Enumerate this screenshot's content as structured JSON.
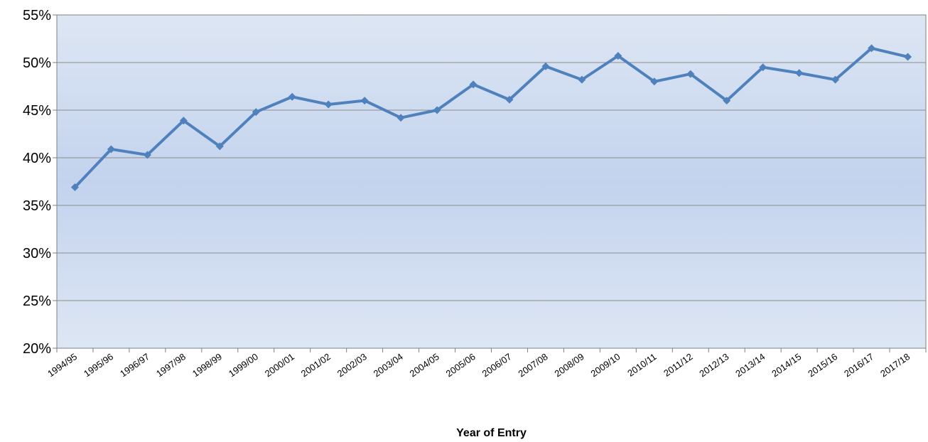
{
  "chart_data": {
    "type": "line",
    "title": "",
    "xlabel": "Year of Entry",
    "ylabel": "",
    "ylim": [
      0.2,
      0.55
    ],
    "yticks": [
      "20%",
      "25%",
      "30%",
      "35%",
      "40%",
      "45%",
      "50%",
      "55%"
    ],
    "grid": true,
    "legend": "none",
    "line_color": "#4f81bd",
    "plot_bg_top": "#dde6f3",
    "plot_bg_bottom": "#c3d3ee",
    "categories": [
      "1994/95",
      "1995/96",
      "1996/97",
      "1997/98",
      "1998/99",
      "1999/00",
      "2000/01",
      "2001/02",
      "2002/03",
      "2003/04",
      "2004/05",
      "2005/06",
      "2006/07",
      "2007/08",
      "2008/09",
      "2009/10",
      "2010/11",
      "2011/12",
      "2012/13",
      "2013/14",
      "2014/15",
      "2015/16",
      "2016/17",
      "2017/18"
    ],
    "series": [
      {
        "values": [
          0.369,
          0.409,
          0.403,
          0.439,
          0.412,
          0.448,
          0.464,
          0.456,
          0.46,
          0.442,
          0.45,
          0.477,
          0.461,
          0.496,
          0.482,
          0.507,
          0.48,
          0.488,
          0.46,
          0.495,
          0.489,
          0.482,
          0.515,
          0.506
        ]
      }
    ]
  }
}
